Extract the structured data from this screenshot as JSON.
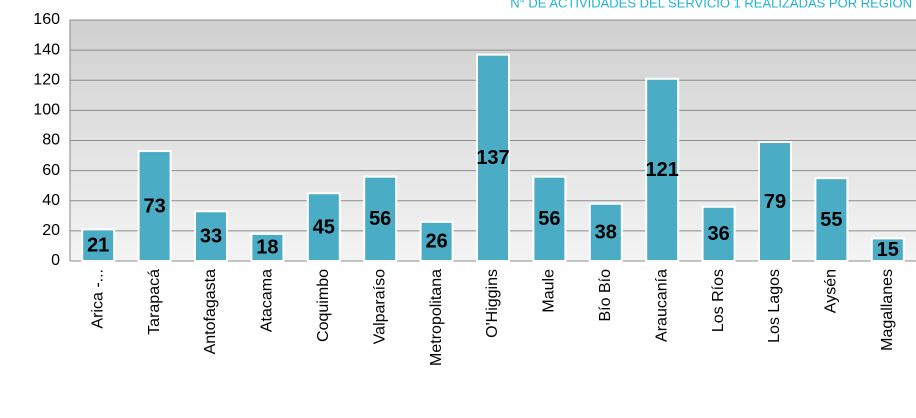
{
  "chart_data": {
    "type": "bar",
    "title": "N° DE ACTIVIDADES DEL SERVICIO 1 REALIZADAS POR REGIÓN",
    "categories": [
      "Arica -...",
      "Tarapacá",
      "Antofagasta",
      "Atacama",
      "Coquimbo",
      "Valparaíso",
      "Metropolitana",
      "O'Higgins",
      "Maule",
      "Bío Bío",
      "Araucanía",
      "Los Ríos",
      "Los Lagos",
      "Aysén",
      "Magallanes"
    ],
    "values": [
      21,
      73,
      33,
      18,
      45,
      56,
      26,
      137,
      56,
      38,
      121,
      36,
      79,
      55,
      15
    ],
    "color": "#4bacc6",
    "ylim": [
      0,
      160
    ],
    "yticks": [
      0,
      20,
      40,
      60,
      80,
      100,
      120,
      140,
      160
    ],
    "grid": true
  }
}
